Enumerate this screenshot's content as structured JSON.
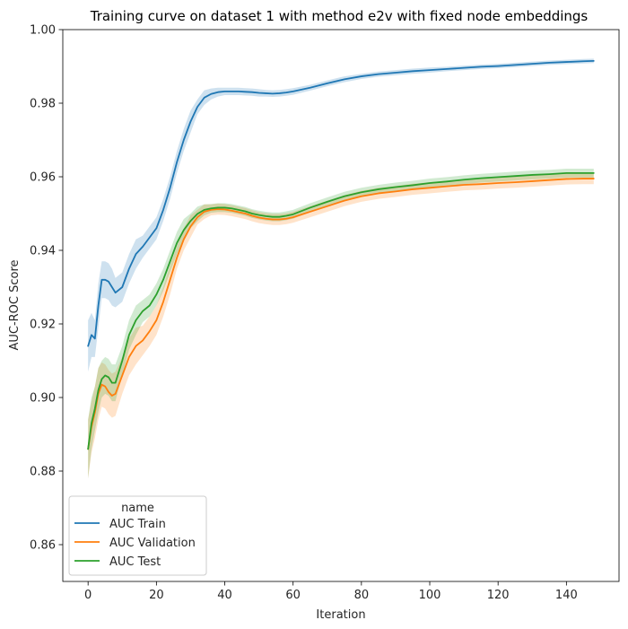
{
  "chart_data": {
    "type": "line",
    "title": "Training curve on dataset 1 with method e2v with fixed node embeddings",
    "xlabel": "Iteration",
    "ylabel": "AUC-ROC Score",
    "xlim": [
      -7.4,
      155.4
    ],
    "ylim": [
      0.85,
      1.0
    ],
    "xticks": [
      0,
      20,
      40,
      60,
      80,
      100,
      120,
      140
    ],
    "yticks": [
      0.86,
      0.88,
      0.9,
      0.92,
      0.94,
      0.96,
      0.98,
      1.0
    ],
    "xtick_labels": [
      "0",
      "20",
      "40",
      "60",
      "80",
      "100",
      "120",
      "140"
    ],
    "ytick_labels": [
      "0.86",
      "0.88",
      "0.90",
      "0.92",
      "0.94",
      "0.96",
      "0.98",
      "1.00"
    ],
    "grid": false,
    "legend": {
      "title": "name",
      "position": "lower-left"
    },
    "series": [
      {
        "name": "AUC Train",
        "color": "#1f77b4",
        "x": [
          0,
          1,
          2,
          3,
          4,
          5,
          6,
          7,
          8,
          10,
          12,
          14,
          16,
          18,
          20,
          22,
          24,
          26,
          28,
          30,
          32,
          34,
          36,
          38,
          40,
          42,
          44,
          46,
          48,
          50,
          52,
          54,
          56,
          58,
          60,
          65,
          70,
          75,
          80,
          85,
          90,
          95,
          100,
          105,
          110,
          115,
          120,
          125,
          130,
          135,
          140,
          145,
          148
        ],
        "y": [
          0.914,
          0.917,
          0.916,
          0.925,
          0.932,
          0.932,
          0.9315,
          0.93,
          0.9285,
          0.93,
          0.935,
          0.939,
          0.941,
          0.9435,
          0.946,
          0.951,
          0.957,
          0.964,
          0.97,
          0.975,
          0.979,
          0.9815,
          0.9825,
          0.983,
          0.9832,
          0.9832,
          0.9832,
          0.9831,
          0.983,
          0.9828,
          0.9827,
          0.9826,
          0.9827,
          0.9829,
          0.9832,
          0.9842,
          0.9854,
          0.9865,
          0.9873,
          0.9879,
          0.9883,
          0.9887,
          0.989,
          0.9893,
          0.9896,
          0.9899,
          0.9901,
          0.9904,
          0.9907,
          0.991,
          0.9912,
          0.9914,
          0.9915
        ],
        "ci": [
          0.007,
          0.006,
          0.005,
          0.006,
          0.005,
          0.005,
          0.005,
          0.005,
          0.004,
          0.004,
          0.004,
          0.004,
          0.003,
          0.003,
          0.003,
          0.003,
          0.003,
          0.003,
          0.003,
          0.003,
          0.002,
          0.002,
          0.0015,
          0.0012,
          0.001,
          0.001,
          0.001,
          0.001,
          0.001,
          0.001,
          0.0009,
          0.0009,
          0.0009,
          0.0009,
          0.0009,
          0.0008,
          0.0008,
          0.0008,
          0.0007,
          0.0007,
          0.0007,
          0.0007,
          0.0007,
          0.0006,
          0.0006,
          0.0006,
          0.0006,
          0.0006,
          0.0006,
          0.0006,
          0.0006,
          0.0006,
          0.0006
        ]
      },
      {
        "name": "AUC Validation",
        "color": "#ff7f0e",
        "x": [
          0,
          1,
          2,
          3,
          4,
          5,
          6,
          7,
          8,
          10,
          12,
          14,
          16,
          18,
          20,
          22,
          24,
          26,
          28,
          30,
          32,
          34,
          36,
          38,
          40,
          42,
          44,
          46,
          48,
          50,
          52,
          54,
          56,
          58,
          60,
          65,
          70,
          75,
          80,
          85,
          90,
          95,
          100,
          105,
          110,
          115,
          120,
          125,
          130,
          135,
          140,
          145,
          148
        ],
        "y": [
          0.886,
          0.892,
          0.896,
          0.901,
          0.9035,
          0.903,
          0.9015,
          0.9005,
          0.901,
          0.906,
          0.911,
          0.914,
          0.9155,
          0.918,
          0.921,
          0.926,
          0.932,
          0.938,
          0.943,
          0.9465,
          0.949,
          0.9505,
          0.951,
          0.9512,
          0.9511,
          0.9508,
          0.9504,
          0.95,
          0.9494,
          0.9489,
          0.9486,
          0.9484,
          0.9484,
          0.9486,
          0.949,
          0.9505,
          0.952,
          0.9535,
          0.9547,
          0.9555,
          0.956,
          0.9566,
          0.957,
          0.9574,
          0.9578,
          0.958,
          0.9583,
          0.9585,
          0.9588,
          0.9591,
          0.9594,
          0.9595,
          0.9595
        ],
        "ci": [
          0.008,
          0.007,
          0.007,
          0.007,
          0.006,
          0.006,
          0.006,
          0.006,
          0.006,
          0.005,
          0.005,
          0.005,
          0.004,
          0.004,
          0.004,
          0.004,
          0.004,
          0.003,
          0.003,
          0.003,
          0.002,
          0.002,
          0.0015,
          0.0015,
          0.0015,
          0.0015,
          0.0015,
          0.0015,
          0.0015,
          0.0015,
          0.0015,
          0.0015,
          0.0015,
          0.0015,
          0.0015,
          0.0015,
          0.0015,
          0.0015,
          0.0015,
          0.0015,
          0.0015,
          0.0015,
          0.0015,
          0.0015,
          0.0015,
          0.0015,
          0.0015,
          0.0015,
          0.0015,
          0.0015,
          0.0015,
          0.0015,
          0.0015
        ]
      },
      {
        "name": "AUC Test",
        "color": "#2ca02c",
        "x": [
          0,
          1,
          2,
          3,
          4,
          5,
          6,
          7,
          8,
          10,
          12,
          14,
          16,
          18,
          20,
          22,
          24,
          26,
          28,
          30,
          32,
          34,
          36,
          38,
          40,
          42,
          44,
          46,
          48,
          50,
          52,
          54,
          56,
          58,
          60,
          65,
          70,
          75,
          80,
          85,
          90,
          95,
          100,
          105,
          110,
          115,
          120,
          125,
          130,
          135,
          140,
          145,
          148
        ],
        "y": [
          0.886,
          0.893,
          0.897,
          0.902,
          0.905,
          0.906,
          0.9055,
          0.904,
          0.904,
          0.91,
          0.917,
          0.921,
          0.9235,
          0.925,
          0.928,
          0.932,
          0.937,
          0.942,
          0.9455,
          0.948,
          0.9499,
          0.951,
          0.9514,
          0.9516,
          0.9516,
          0.9514,
          0.951,
          0.9506,
          0.95,
          0.9496,
          0.9493,
          0.9491,
          0.9491,
          0.9494,
          0.9498,
          0.9516,
          0.9532,
          0.9547,
          0.9558,
          0.9566,
          0.9572,
          0.9577,
          0.9583,
          0.9587,
          0.9592,
          0.9596,
          0.9599,
          0.9602,
          0.9605,
          0.9607,
          0.961,
          0.961,
          0.961
        ],
        "ci": [
          0.008,
          0.007,
          0.006,
          0.006,
          0.005,
          0.005,
          0.005,
          0.005,
          0.005,
          0.004,
          0.004,
          0.004,
          0.003,
          0.003,
          0.003,
          0.003,
          0.003,
          0.003,
          0.003,
          0.002,
          0.002,
          0.0015,
          0.0012,
          0.0012,
          0.0012,
          0.0012,
          0.0012,
          0.0012,
          0.0012,
          0.0012,
          0.0012,
          0.0012,
          0.0012,
          0.0012,
          0.0012,
          0.0012,
          0.0012,
          0.0012,
          0.0012,
          0.0012,
          0.0012,
          0.0012,
          0.0012,
          0.0012,
          0.0012,
          0.0012,
          0.0012,
          0.0012,
          0.0012,
          0.0012,
          0.0012,
          0.0012,
          0.0012
        ]
      }
    ]
  }
}
